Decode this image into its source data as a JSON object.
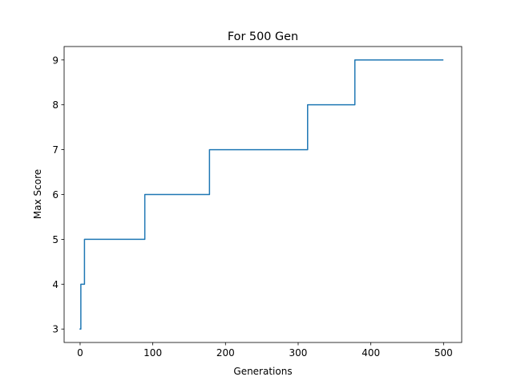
{
  "chart_data": {
    "type": "line",
    "title": "For 500 Gen",
    "xlabel": "Generations",
    "ylabel": "Max Score",
    "xlim": [
      -22,
      525
    ],
    "ylim": [
      2.7,
      9.3
    ],
    "xticks": [
      0,
      100,
      200,
      300,
      400,
      500
    ],
    "yticks": [
      3,
      4,
      5,
      6,
      7,
      8,
      9
    ],
    "grid": false,
    "legend": "none",
    "series": [
      {
        "color": "#1f77b4",
        "x": [
          0,
          1,
          1,
          6,
          6,
          89,
          89,
          178,
          178,
          313,
          313,
          378,
          378,
          499
        ],
        "y": [
          3,
          3,
          4,
          4,
          5,
          5,
          6,
          6,
          7,
          7,
          8,
          8,
          9,
          9
        ]
      }
    ]
  }
}
